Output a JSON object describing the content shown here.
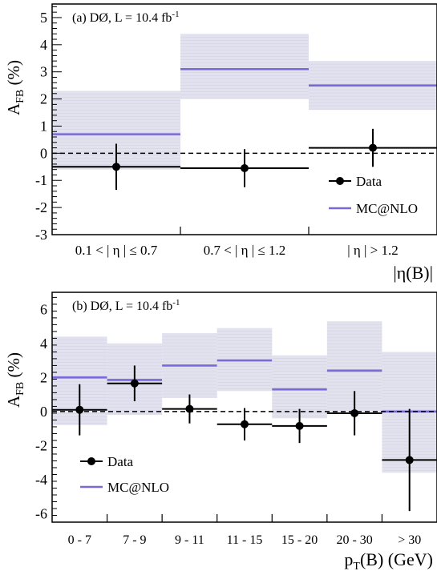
{
  "colors": {
    "mc_line": "#7b68d8",
    "mc_band": "#e2e2ee",
    "data": "#000000"
  },
  "chart_data": [
    {
      "type": "bar",
      "panel_label": "(a)",
      "experiment": "DØ, L = 10.4 fb",
      "lumi_superscript": "-1",
      "ylabel_main": "A",
      "ylabel_sub": "FB",
      "ylabel_unit": "(%)",
      "xlabel": "|η(B)|",
      "ylim": [
        -3,
        5.5
      ],
      "yticks": [
        -3,
        -2,
        -1,
        0,
        1,
        2,
        3,
        4,
        5
      ],
      "categories": [
        "0.1 < | η | ≤ 0.7",
        "0.7 < | η | ≤ 1.2",
        "| η | > 1.2"
      ],
      "series": [
        {
          "name": "Data",
          "values": [
            -0.5,
            -0.55,
            0.2
          ],
          "errors": [
            0.85,
            0.7,
            0.7
          ]
        },
        {
          "name": "MC@NLO",
          "values": [
            0.7,
            3.1,
            2.5
          ],
          "band_low": [
            -0.6,
            2.0,
            1.6
          ],
          "band_high": [
            2.3,
            4.4,
            3.4
          ]
        }
      ],
      "legend": {
        "placement": "bottom-right",
        "entries": [
          "Data",
          "MC@NLO"
        ]
      }
    },
    {
      "type": "bar",
      "panel_label": "(b)",
      "experiment": "DØ, L = 10.4 fb",
      "lumi_superscript": "-1",
      "ylabel_main": "A",
      "ylabel_sub": "FB",
      "ylabel_unit": "(%)",
      "xlabel": "p",
      "xlabel_sub": "T",
      "xlabel_rest": "(B) (GeV)",
      "ylim": [
        -6.5,
        7
      ],
      "yticks": [
        -6,
        -4,
        -2,
        0,
        2,
        4,
        6
      ],
      "categories": [
        "0 - 7",
        "7 - 9",
        "9 - 11",
        "11 - 15",
        "15 - 20",
        "20 - 30",
        "> 30"
      ],
      "series": [
        {
          "name": "Data",
          "values": [
            0.1,
            1.65,
            0.15,
            -0.75,
            -0.85,
            -0.1,
            -2.85
          ],
          "errors": [
            1.5,
            1.05,
            0.85,
            0.95,
            1.0,
            1.3,
            3.0
          ]
        },
        {
          "name": "MC@NLO",
          "values": [
            2.0,
            1.85,
            2.7,
            3.0,
            1.3,
            2.4,
            0.0
          ],
          "band_low": [
            -0.8,
            -0.2,
            0.8,
            1.2,
            -0.4,
            0.0,
            -3.6
          ],
          "band_high": [
            4.4,
            4.0,
            4.6,
            4.9,
            3.3,
            5.3,
            3.5
          ]
        }
      ],
      "legend": {
        "placement": "bottom-left",
        "entries": [
          "Data",
          "MC@NLO"
        ]
      }
    }
  ]
}
